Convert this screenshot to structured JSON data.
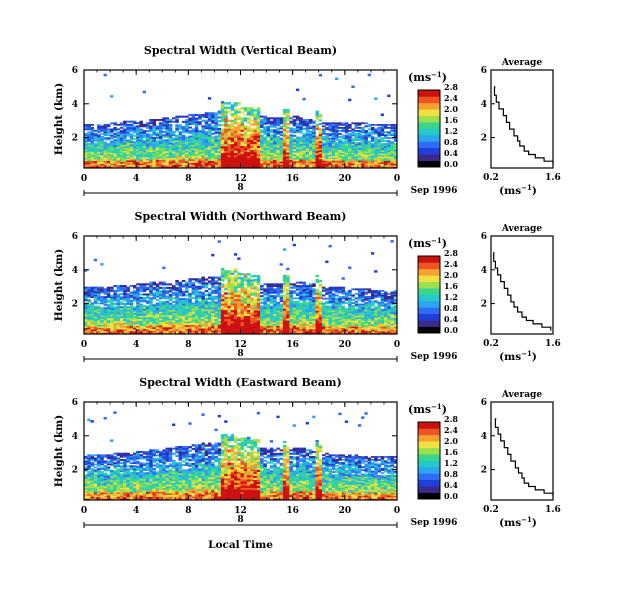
{
  "figure": {
    "bottom_xlabel": "Local Time",
    "date_label": "Sep 1996",
    "day_label": "8",
    "ylabel": "Height (km)",
    "unit_label": "(ms",
    "unit_sup": "−1",
    "avg_title": "Average",
    "avg_xlabel": "(ms",
    "avg_xlabel_sup": "−1",
    "colormap": [
      "#000000",
      "#3a2a8c",
      "#1f3fd8",
      "#2f6cf5",
      "#2aa6f0",
      "#26c9c9",
      "#3bd68a",
      "#9be04d",
      "#f0e040",
      "#f5a030",
      "#ee5522",
      "#cc1111"
    ]
  },
  "chart_data": [
    {
      "type": "heatmap",
      "title": "Spectral Width (Vertical Beam)",
      "xlabel": "Local Time",
      "ylabel": "Height (km)",
      "x_ticks": [
        "0",
        "4",
        "8",
        "12",
        "16",
        "20",
        "0"
      ],
      "xlim": [
        0,
        24
      ],
      "y_ticks": [
        "2",
        "4",
        "6"
      ],
      "ylim": [
        0.2,
        6
      ],
      "colorbar_label": "ms^-1",
      "colorbar_ticks": [
        "0.0",
        "0.4",
        "0.8",
        "1.2",
        "1.6",
        "2.0",
        "2.4",
        "2.8"
      ],
      "echo_top_km": [
        2.8,
        2.8,
        2.9,
        3.0,
        3.0,
        3.1,
        3.2,
        3.3,
        3.4,
        3.5,
        3.6,
        3.6,
        3.3,
        3.3,
        3.2,
        3.2,
        3.3,
        3.1,
        2.9,
        2.9,
        2.9,
        2.9,
        2.8,
        2.8
      ],
      "average_profile": {
        "xlim": [
          0.2,
          1.6
        ],
        "x_ticks": [
          "0.2",
          "1.6"
        ],
        "y_ticks": [
          "2",
          "4",
          "6"
        ],
        "height_km": [
          0.4,
          0.6,
          0.8,
          1.0,
          1.2,
          1.5,
          1.8,
          2.1,
          2.5,
          2.9,
          3.3,
          3.7,
          4.1,
          4.5,
          5.0
        ],
        "width_ms": [
          1.6,
          1.4,
          1.2,
          1.05,
          0.95,
          0.85,
          0.8,
          0.72,
          0.62,
          0.55,
          0.48,
          0.38,
          0.32,
          0.28,
          0.3
        ]
      }
    },
    {
      "type": "heatmap",
      "title": "Spectral Width (Northward Beam)",
      "xlabel": "Local Time",
      "ylabel": "Height (km)",
      "x_ticks": [
        "0",
        "4",
        "8",
        "12",
        "16",
        "20",
        "0"
      ],
      "xlim": [
        0,
        24
      ],
      "y_ticks": [
        "2",
        "4",
        "6"
      ],
      "ylim": [
        0.2,
        6
      ],
      "colorbar_label": "ms^-1",
      "colorbar_ticks": [
        "0.0",
        "0.4",
        "0.8",
        "1.2",
        "1.6",
        "2.0",
        "2.4",
        "2.8"
      ],
      "echo_top_km": [
        3.0,
        3.0,
        3.1,
        3.1,
        3.2,
        3.3,
        3.3,
        3.4,
        3.5,
        3.6,
        3.6,
        3.6,
        3.3,
        3.2,
        3.2,
        3.2,
        3.3,
        3.2,
        3.0,
        3.0,
        2.9,
        2.9,
        2.8,
        2.8
      ],
      "average_profile": {
        "xlim": [
          0.2,
          1.6
        ],
        "x_ticks": [
          "0.2",
          "1.6"
        ],
        "y_ticks": [
          "2",
          "4",
          "6"
        ],
        "height_km": [
          0.4,
          0.6,
          0.8,
          1.0,
          1.2,
          1.5,
          1.8,
          2.1,
          2.5,
          2.9,
          3.3,
          3.7,
          4.1,
          4.5,
          5.0
        ],
        "width_ms": [
          1.55,
          1.35,
          1.15,
          1.0,
          0.9,
          0.8,
          0.72,
          0.65,
          0.58,
          0.5,
          0.42,
          0.35,
          0.3,
          0.26,
          0.28
        ]
      }
    },
    {
      "type": "heatmap",
      "title": "Spectral Width (Eastward Beam)",
      "xlabel": "Local Time",
      "ylabel": "Height (km)",
      "x_ticks": [
        "0",
        "4",
        "8",
        "12",
        "16",
        "20",
        "0"
      ],
      "xlim": [
        0,
        24
      ],
      "y_ticks": [
        "2",
        "4",
        "6"
      ],
      "ylim": [
        0.2,
        6
      ],
      "colorbar_label": "ms^-1",
      "colorbar_ticks": [
        "0.0",
        "0.4",
        "0.8",
        "1.2",
        "1.6",
        "2.0",
        "2.4",
        "2.8"
      ],
      "echo_top_km": [
        2.9,
        2.9,
        3.0,
        3.0,
        3.1,
        3.2,
        3.3,
        3.4,
        3.5,
        3.6,
        3.6,
        3.6,
        3.4,
        3.3,
        3.3,
        3.2,
        3.3,
        3.2,
        3.0,
        2.9,
        2.9,
        2.8,
        2.8,
        2.8
      ],
      "average_profile": {
        "xlim": [
          0.2,
          1.6
        ],
        "x_ticks": [
          "0.2",
          "1.6"
        ],
        "y_ticks": [
          "2",
          "4",
          "6"
        ],
        "height_km": [
          0.4,
          0.6,
          0.8,
          1.0,
          1.2,
          1.5,
          1.8,
          2.1,
          2.5,
          2.9,
          3.3,
          3.7,
          4.1,
          4.5,
          5.0
        ],
        "width_ms": [
          1.6,
          1.4,
          1.2,
          1.05,
          0.95,
          0.9,
          0.82,
          0.75,
          0.65,
          0.58,
          0.5,
          0.42,
          0.36,
          0.3,
          0.32
        ]
      }
    }
  ]
}
